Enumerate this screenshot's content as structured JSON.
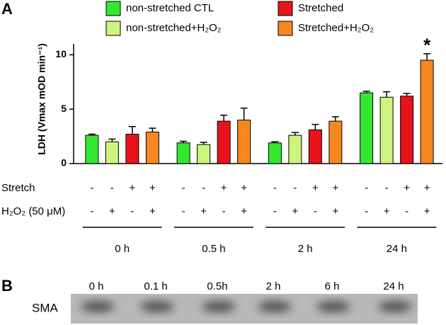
{
  "chart_data": {
    "type": "bar",
    "ylabel": "LDH (Vmax mOD min⁻¹)",
    "categories": [
      "0 h",
      "0.5 h",
      "2 h",
      "24 h"
    ],
    "series": [
      {
        "name": "non-stretched CTL",
        "color": "#35e82f",
        "values": [
          2.6,
          1.9,
          1.9,
          6.5
        ],
        "errors": [
          0.1,
          0.15,
          0.1,
          0.15
        ]
      },
      {
        "name": "non-stretched+H₂O₂",
        "color": "#cdf47c",
        "values": [
          2.0,
          1.75,
          2.6,
          6.1
        ],
        "errors": [
          0.25,
          0.2,
          0.25,
          0.5
        ]
      },
      {
        "name": "Stretched",
        "color": "#e8141c",
        "values": [
          2.7,
          3.9,
          3.1,
          6.2
        ],
        "errors": [
          0.7,
          0.55,
          0.5,
          0.25
        ]
      },
      {
        "name": "Stretched+H₂O₂",
        "color": "#f7871f",
        "values": [
          2.9,
          4.0,
          3.9,
          9.5
        ],
        "errors": [
          0.35,
          1.1,
          0.4,
          0.6
        ]
      }
    ],
    "ylim": [
      0,
      11
    ],
    "yticks": [
      0,
      5,
      10
    ],
    "legend": "top",
    "treatment_rows": [
      {
        "label": "Stretch",
        "signs": [
          "-",
          "-",
          "+",
          "+"
        ]
      },
      {
        "label": "H₂O₂ (50 μM)",
        "signs": [
          "-",
          "+",
          "-",
          "+"
        ]
      }
    ],
    "annotation": "*"
  },
  "panel_labels": [
    "A",
    "B"
  ],
  "blot": {
    "label": "SMA",
    "lanes": [
      "0 h",
      "0.1 h",
      "0.5h",
      "2 h",
      "6 h",
      "24 h"
    ]
  }
}
